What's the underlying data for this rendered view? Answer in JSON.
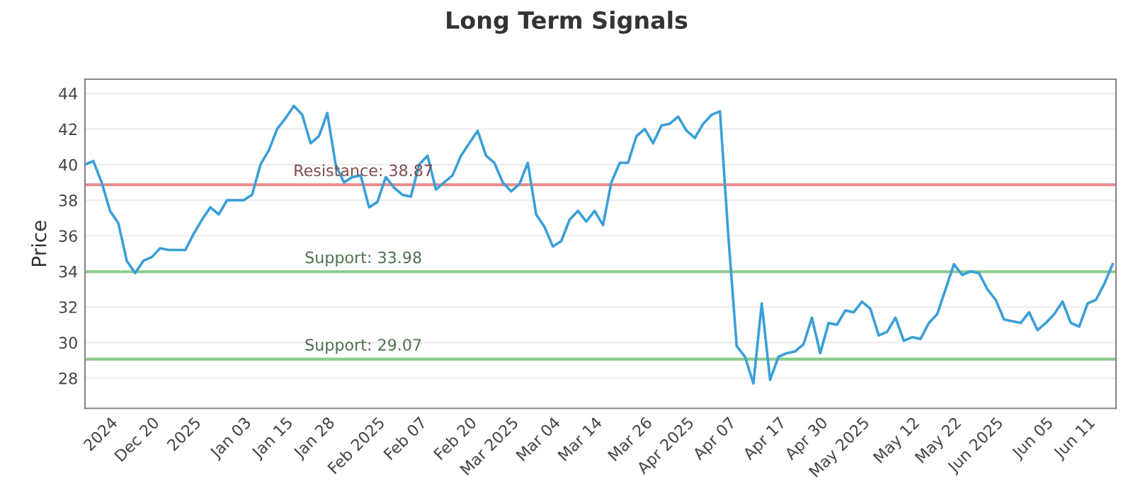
{
  "chart_data": {
    "type": "line",
    "title": "Long Term Signals",
    "ylabel": "Price",
    "categories": [
      null,
      null,
      null,
      "2024",
      null,
      null,
      null,
      null,
      "Dec 20",
      null,
      null,
      null,
      null,
      "2025",
      null,
      null,
      null,
      null,
      null,
      "Jan 03",
      null,
      null,
      null,
      null,
      "Jan 15",
      null,
      null,
      null,
      null,
      "Jan 28",
      null,
      null,
      null,
      null,
      null,
      "Feb 2025",
      null,
      null,
      null,
      null,
      "Feb 07",
      null,
      null,
      null,
      null,
      null,
      "Feb 20",
      null,
      null,
      null,
      null,
      "Mar 2025",
      null,
      null,
      null,
      null,
      "Mar 04",
      null,
      null,
      null,
      null,
      "Mar 14",
      null,
      null,
      null,
      null,
      null,
      "Mar 26",
      null,
      null,
      null,
      null,
      "Apr 2025",
      null,
      null,
      null,
      null,
      "Apr 07",
      null,
      null,
      null,
      null,
      null,
      "Apr 17",
      null,
      null,
      null,
      null,
      "Apr 30",
      null,
      null,
      null,
      null,
      "May 2025",
      null,
      null,
      null,
      null,
      null,
      "May 12",
      null,
      null,
      null,
      null,
      "May 22",
      null,
      null,
      null,
      null,
      "Jun 2025",
      null,
      null,
      null,
      null,
      null,
      "Jun 05",
      null,
      null,
      null,
      null,
      "Jun 11",
      null,
      null,
      null
    ],
    "series": [
      {
        "color": "#3a9fd8",
        "values": [
          40.0,
          40.2,
          39.0,
          37.4,
          36.7,
          34.6,
          33.9,
          34.6,
          34.8,
          35.3,
          35.2,
          35.2,
          35.2,
          36.1,
          36.9,
          37.6,
          37.2,
          38.0,
          38.0,
          38.0,
          38.3,
          40.0,
          40.8,
          42.0,
          42.6,
          43.3,
          42.8,
          41.2,
          41.6,
          42.9,
          40.0,
          39.0,
          39.3,
          39.4,
          37.6,
          37.9,
          39.3,
          38.7,
          38.3,
          38.2,
          40.0,
          40.5,
          38.6,
          39.0,
          39.4,
          40.5,
          41.2,
          41.9,
          40.5,
          40.1,
          39.0,
          38.5,
          38.9,
          40.1,
          37.2,
          36.5,
          35.4,
          35.7,
          36.9,
          37.4,
          36.8,
          37.4,
          36.6,
          39.0,
          40.1,
          40.1,
          41.6,
          42.0,
          41.2,
          42.2,
          42.3,
          42.7,
          41.9,
          41.5,
          42.3,
          42.8,
          43.0,
          36.0,
          29.8,
          29.2,
          27.7,
          32.2,
          27.9,
          29.2,
          29.4,
          29.5,
          29.9,
          31.4,
          29.4,
          31.1,
          31.0,
          31.8,
          31.7,
          32.3,
          31.9,
          30.4,
          30.6,
          31.4,
          30.1,
          30.3,
          30.2,
          31.1,
          31.6,
          33.0,
          34.4,
          33.8,
          34.0,
          33.9,
          33.0,
          32.4,
          31.3,
          31.2,
          31.1,
          31.7,
          30.7,
          31.1,
          31.6,
          32.3,
          31.1,
          30.9,
          32.2,
          32.4,
          33.3,
          34.4
        ]
      }
    ],
    "ylim": [
      26.3,
      44.8
    ],
    "yticks": [
      28,
      30,
      32,
      34,
      36,
      38,
      40,
      42,
      44
    ],
    "grid": "y",
    "marker": "none",
    "line_style": "solid",
    "ref_lines": [
      {
        "axis": "y",
        "value": 38.87,
        "label": "Resistance: 38.87",
        "color": "#e88a8a"
      },
      {
        "axis": "y",
        "value": 33.98,
        "label": "Support: 33.98",
        "color": "#8ccc8c"
      },
      {
        "axis": "y",
        "value": 29.07,
        "label": "Support: 29.07",
        "color": "#8ccc8c"
      }
    ]
  }
}
